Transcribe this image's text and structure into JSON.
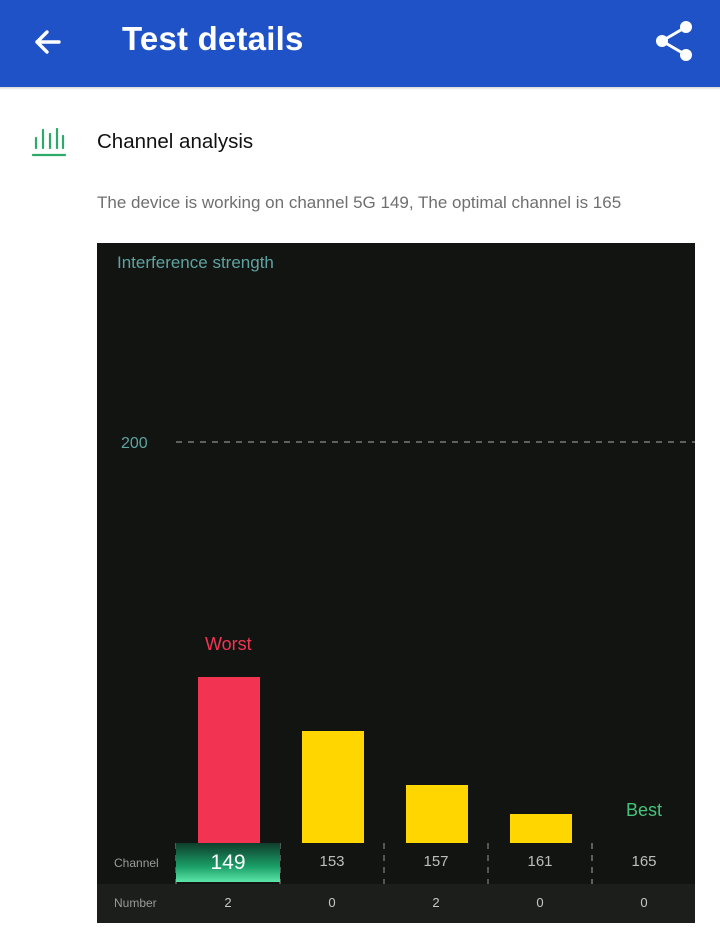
{
  "appbar": {
    "title": "Test details",
    "back_icon": "arrow-left-icon",
    "share_icon": "share-icon",
    "color": "#1f52c6"
  },
  "section": {
    "icon": "bar-chart-icon",
    "title": "Channel analysis",
    "description": "The device is working on channel 5G 149, The optimal channel is 165"
  },
  "chart_data": {
    "type": "bar",
    "ylabel": "Interference strength",
    "yticks": [
      200
    ],
    "categories": [
      "149",
      "153",
      "157",
      "161",
      "165"
    ],
    "values": [
      2,
      0,
      2,
      0,
      0
    ],
    "current_channel": "149",
    "row_labels": {
      "channel": "Channel",
      "number": "Number"
    },
    "worst_label": "Worst",
    "best_label": "Best",
    "colors": {
      "worst": "#f23452",
      "normal": "#ffd600",
      "best": "#46c37b",
      "background": "#121412"
    }
  }
}
